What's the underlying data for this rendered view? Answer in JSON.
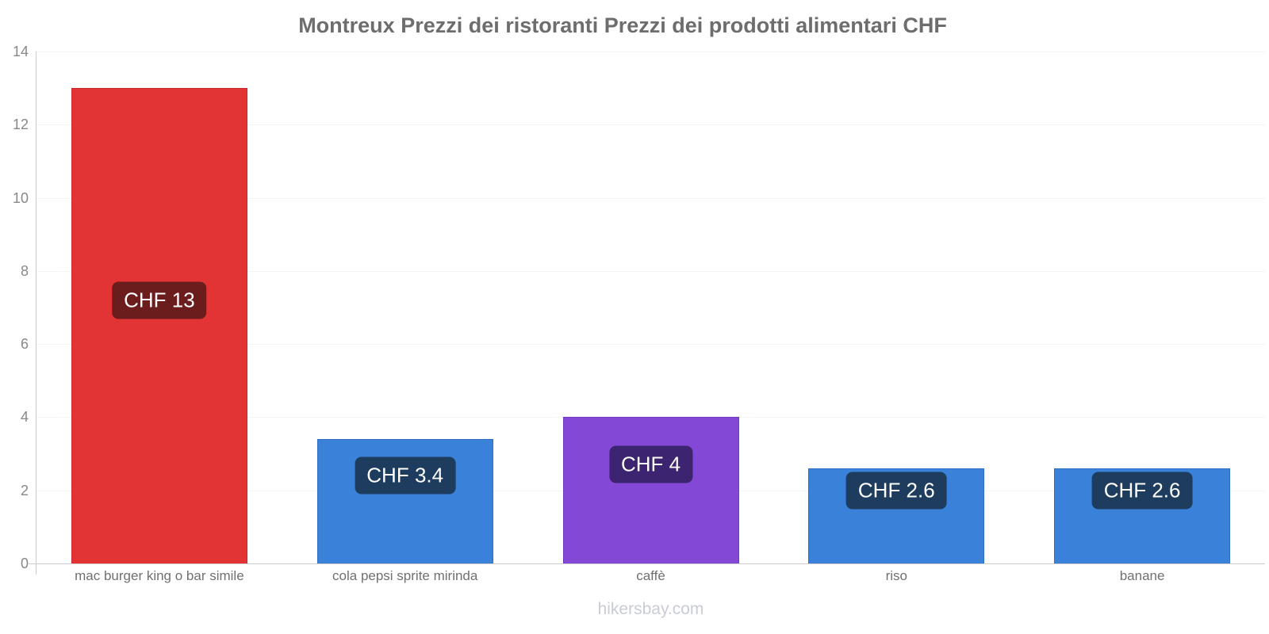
{
  "title": "Montreux Prezzi dei ristoranti Prezzi dei prodotti alimentari CHF",
  "footer": {
    "text": "hikersbay.com"
  },
  "colors": {
    "axis": "#cccccc",
    "grid": "#f4f4f6",
    "title_text": "#6d6d6d",
    "tick_text": "#888888",
    "category_text": "#707070",
    "footer_text": "#c9ccd6",
    "badge_text": "#ffffff"
  },
  "chart_data": {
    "type": "bar",
    "title": "Montreux Prezzi dei ristoranti Prezzi dei prodotti alimentari CHF",
    "categories": [
      "mac burger king o bar simile",
      "cola pepsi sprite mirinda",
      "caffè",
      "riso",
      "banane"
    ],
    "values": [
      13,
      3.4,
      4,
      2.6,
      2.6
    ],
    "value_labels": [
      "CHF 13",
      "CHF 3.4",
      "CHF 4",
      "CHF 2.6",
      "CHF 2.6"
    ],
    "bar_colors": [
      "#e23434",
      "#3a81da",
      "#8349d6",
      "#3a81da",
      "#3a81da"
    ],
    "bar_border_colors": [
      "#c92c2c",
      "#2e6fc2",
      "#7139c2",
      "#2e6fc2",
      "#2e6fc2"
    ],
    "badge_colors": [
      "#6b1d1d",
      "#1d3c5e",
      "#3c2470",
      "#1d3c5e",
      "#1d3c5e"
    ],
    "currency": "CHF",
    "xlabel": "",
    "ylabel": "",
    "ylim": [
      0,
      14
    ],
    "yticks": [
      0,
      2,
      4,
      6,
      8,
      10,
      12,
      14
    ],
    "grid": "horizontal-faint",
    "legend": "none",
    "watermark": "hikersbay.com"
  }
}
